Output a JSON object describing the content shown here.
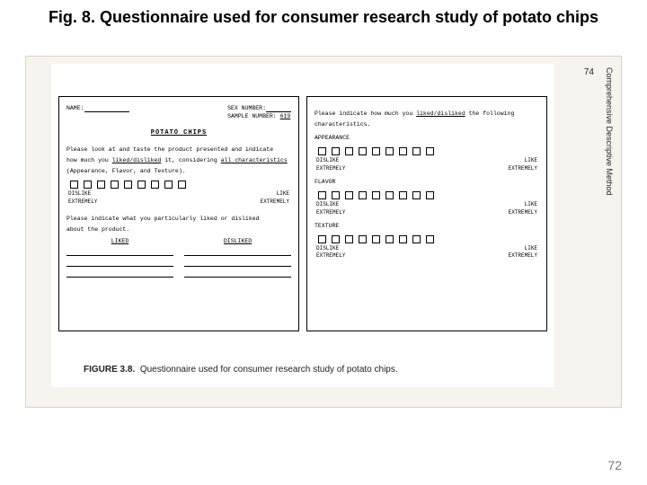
{
  "caption": "Fig. 8. Questionnaire used for consumer research study of potato chips",
  "scan": {
    "side_page": "74",
    "side_label": "Comprehensive Descriptive Method",
    "bottom_caption_label": "FIGURE 3.8.",
    "bottom_caption_text": "Questionnaire used for consumer research study of potato chips.",
    "background_color": "#f5f4ef"
  },
  "left_form": {
    "name_label": "NAME:",
    "sex_label": "SEX NUMBER:",
    "sample_label": "SAMPLE NUMBER:",
    "sample_value": "619",
    "title": "POTATO CHIPS",
    "instr1": "Please look at and taste the product presented and indicate",
    "instr2": "how much you ",
    "instr2_u": "liked/disliked",
    "instr2b": " it, considering ",
    "instr2b_u": "all characteristics",
    "instr3": "(Appearance, Flavor, and Texture).",
    "scale_left": "DISLIKE EXTREMELY",
    "scale_right": "LIKE EXTREMELY",
    "open_instr": "Please indicate what you particularly liked or disliked",
    "open_instr2": "about the product.",
    "col_liked": "LIKED",
    "col_disliked": "DISLIKED",
    "checkbox_count": 9,
    "line_count": 3
  },
  "right_form": {
    "instr1": "Please indicate how much you ",
    "instr1_u": "liked/disliked",
    "instr1b": " the following",
    "instr2": "characteristics.",
    "scale_left": "DISLIKE EXTREMELY",
    "scale_right": "LIKE EXTREMELY",
    "attributes": [
      "APPEARANCE",
      "FLAVOR",
      "TEXTURE"
    ],
    "checkbox_count": 9
  },
  "page_number": "72"
}
